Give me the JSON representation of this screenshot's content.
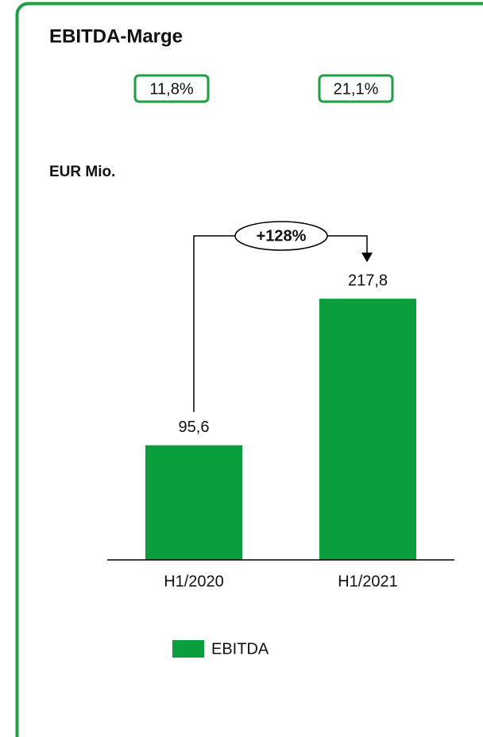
{
  "chart_data": {
    "type": "bar",
    "title": "EBITDA-Marge",
    "margins": [
      "11,8%",
      "21,1%"
    ],
    "ylabel": "EUR Mio.",
    "annotation": "+128%",
    "categories": [
      "H1/2020",
      "H1/2021"
    ],
    "series": [
      {
        "name": "EBITDA",
        "color": "#0a9f3c",
        "values": [
          95.6,
          217.8
        ],
        "value_labels": [
          "95,6",
          "217,8"
        ]
      }
    ],
    "ylim": [
      0,
      250
    ]
  }
}
